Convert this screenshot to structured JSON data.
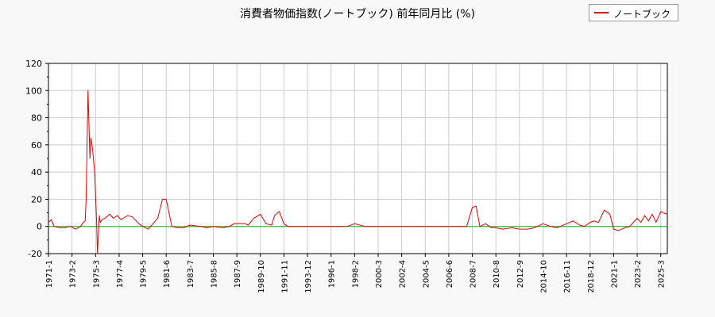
{
  "chart_data": {
    "type": "line",
    "title": "消費者物価指数(ノートブック) 前年同月比 (%)",
    "xlabel": "",
    "ylabel": "",
    "ylim": [
      -20,
      120
    ],
    "yticks": [
      -20,
      0,
      20,
      40,
      60,
      80,
      100,
      120
    ],
    "xticks": [
      "1971-1",
      "1973-2",
      "1975-3",
      "1977-4",
      "1979-5",
      "1981-6",
      "1983-7",
      "1985-8",
      "1987-9",
      "1989-10",
      "1991-11",
      "1993-12",
      "1996-1",
      "1998-2",
      "2000-3",
      "2002-4",
      "2004-5",
      "2006-6",
      "2008-7",
      "2010-8",
      "2012-9",
      "2014-10",
      "2016-11",
      "2018-12",
      "2021-1",
      "2023-2",
      "2025-3"
    ],
    "xlim": [
      "1971-1",
      "2025-10"
    ],
    "grid": true,
    "legend_position": "top-right",
    "reference_line": 0,
    "colors": {
      "series": "#e00000",
      "zero_line": "#00c000",
      "grid": "#cccccc"
    },
    "series": [
      {
        "name": "ノートブック",
        "x": [
          "1971-1",
          "1971-4",
          "1971-7",
          "1972-1",
          "1972-6",
          "1972-12",
          "1973-6",
          "1973-11",
          "1974-2",
          "1974-4",
          "1974-5",
          "1974-7",
          "1974-9",
          "1974-10",
          "1974-12",
          "1975-2",
          "1975-4",
          "1975-5",
          "1975-7",
          "1975-8",
          "1975-10",
          "1976-1",
          "1976-6",
          "1976-10",
          "1977-2",
          "1977-6",
          "1978-1",
          "1978-6",
          "1979-1",
          "1979-5",
          "1979-11",
          "1980-4",
          "1980-9",
          "1981-2",
          "1981-6",
          "1981-12",
          "1982-6",
          "1983-1",
          "1983-7",
          "1984-6",
          "1985-1",
          "1985-8",
          "1986-6",
          "1987-1",
          "1987-6",
          "1987-9",
          "1988-6",
          "1988-9",
          "1989-3",
          "1989-10",
          "1990-4",
          "1990-10",
          "1991-1",
          "1991-6",
          "1991-11",
          "1992-3",
          "1992-9",
          "1993-12",
          "1996-1",
          "1997-6",
          "1998-2",
          "1999-1",
          "2000-3",
          "2001-1",
          "2002-4",
          "2003-6",
          "2004-5",
          "2005-6",
          "2006-6",
          "2007-6",
          "2008-1",
          "2008-7",
          "2008-11",
          "2009-3",
          "2009-9",
          "2010-3",
          "2010-8",
          "2011-3",
          "2012-1",
          "2012-9",
          "2013-6",
          "2014-1",
          "2014-10",
          "2015-6",
          "2016-1",
          "2016-11",
          "2017-6",
          "2018-1",
          "2018-6",
          "2018-12",
          "2019-4",
          "2019-9",
          "2020-3",
          "2020-9",
          "2021-1",
          "2021-6",
          "2022-1",
          "2022-6",
          "2022-10",
          "2023-2",
          "2023-6",
          "2023-10",
          "2024-2",
          "2024-6",
          "2024-10",
          "2025-3",
          "2025-6",
          "2025-10"
        ],
        "values": [
          3,
          5,
          0,
          -1,
          -1,
          0,
          -2,
          0,
          3,
          4,
          20,
          100,
          50,
          65,
          56,
          40,
          5,
          -20,
          8,
          3,
          5,
          6,
          9,
          6,
          8,
          5,
          8,
          7,
          2,
          0,
          -2,
          2,
          6,
          20,
          20,
          0,
          -1,
          -1,
          1,
          0,
          -1,
          0,
          -1,
          0,
          2,
          2,
          2,
          1,
          6,
          9,
          2,
          1,
          8,
          11,
          2,
          0,
          0,
          0,
          0,
          0,
          2,
          0,
          0,
          0,
          0,
          0,
          0,
          0,
          0,
          0,
          0,
          14,
          15,
          0,
          2,
          -1,
          -1,
          -2,
          -1,
          -2,
          -2,
          -1,
          2,
          0,
          -1,
          2,
          4,
          1,
          0,
          3,
          4,
          3,
          12,
          9,
          -2,
          -3,
          -1,
          0,
          3,
          6,
          3,
          8,
          4,
          9,
          3,
          11,
          10,
          9
        ]
      }
    ]
  }
}
